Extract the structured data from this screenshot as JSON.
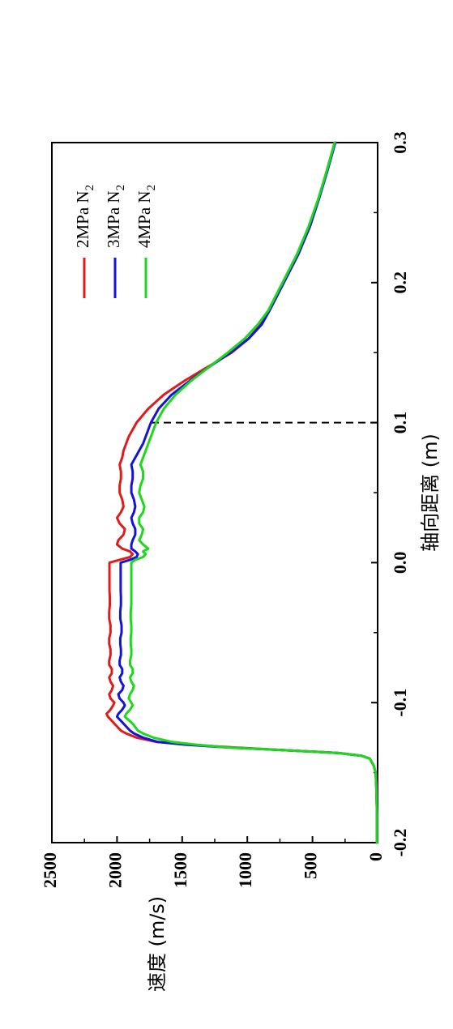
{
  "chart_data": {
    "type": "line",
    "rotation": "rotated 90° clockwise",
    "xlabel": "轴向距离 (m)",
    "ylabel": "速度 (m/s)",
    "xlim": [
      -0.2,
      0.3
    ],
    "ylim": [
      0,
      2500
    ],
    "x_ticks": [
      "-0.2",
      "-0.1",
      "0.0",
      "0.1",
      "0.2",
      "0.3"
    ],
    "y_ticks": [
      "0",
      "500",
      "1000",
      "1500",
      "2000",
      "2500"
    ],
    "legend": {
      "placement": "top-right",
      "entries": [
        "2MPa N2",
        "3MPa N2",
        "4MPa N2"
      ]
    },
    "reference_line": {
      "x": 0.1,
      "y_range": [
        0,
        1750
      ],
      "style": "dashed"
    },
    "series": [
      {
        "name": "2MPa N2",
        "color": "#e01b1b",
        "x": [
          -0.2,
          -0.18,
          -0.16,
          -0.15,
          -0.145,
          -0.14,
          -0.138,
          -0.136,
          -0.134,
          -0.132,
          -0.13,
          -0.128,
          -0.125,
          -0.122,
          -0.12,
          -0.115,
          -0.11,
          -0.108,
          -0.105,
          -0.102,
          -0.1,
          -0.097,
          -0.094,
          -0.091,
          -0.088,
          -0.085,
          -0.082,
          -0.079,
          -0.076,
          -0.073,
          -0.07,
          -0.066,
          -0.062,
          -0.058,
          -0.054,
          -0.05,
          -0.045,
          -0.04,
          -0.035,
          -0.03,
          -0.025,
          -0.02,
          -0.015,
          -0.01,
          -0.005,
          0.0,
          0.002,
          0.004,
          0.006,
          0.008,
          0.01,
          0.013,
          0.016,
          0.02,
          0.024,
          0.028,
          0.032,
          0.036,
          0.04,
          0.045,
          0.05,
          0.055,
          0.06,
          0.065,
          0.07,
          0.075,
          0.08,
          0.085,
          0.09,
          0.095,
          0.1,
          0.11,
          0.12,
          0.13,
          0.14,
          0.15,
          0.16,
          0.17,
          0.18,
          0.2,
          0.22,
          0.24,
          0.26,
          0.28,
          0.3
        ],
        "values": [
          5,
          5,
          10,
          15,
          30,
          60,
          120,
          300,
          700,
          1100,
          1450,
          1700,
          1850,
          1930,
          1970,
          2020,
          2070,
          2080,
          2050,
          2030,
          2020,
          2050,
          2060,
          2040,
          2030,
          2050,
          2060,
          2040,
          2040,
          2060,
          2060,
          2050,
          2050,
          2060,
          2060,
          2050,
          2050,
          2060,
          2060,
          2055,
          2055,
          2058,
          2058,
          2058,
          2058,
          2058,
          1980,
          1900,
          1880,
          1900,
          1960,
          2000,
          1990,
          1950,
          1940,
          1980,
          2000,
          1970,
          1950,
          1960,
          1980,
          1980,
          1970,
          1970,
          1980,
          1960,
          1950,
          1930,
          1910,
          1880,
          1850,
          1760,
          1640,
          1480,
          1300,
          1120,
          990,
          900,
          830,
          720,
          610,
          520,
          450,
          390,
          330
        ]
      },
      {
        "name": "3MPa N2",
        "color": "#1414d8",
        "x": [
          -0.2,
          -0.18,
          -0.16,
          -0.15,
          -0.145,
          -0.14,
          -0.138,
          -0.136,
          -0.134,
          -0.132,
          -0.13,
          -0.128,
          -0.125,
          -0.122,
          -0.12,
          -0.115,
          -0.11,
          -0.108,
          -0.105,
          -0.102,
          -0.1,
          -0.097,
          -0.094,
          -0.091,
          -0.088,
          -0.085,
          -0.082,
          -0.079,
          -0.076,
          -0.073,
          -0.07,
          -0.066,
          -0.062,
          -0.058,
          -0.054,
          -0.05,
          -0.045,
          -0.04,
          -0.035,
          -0.03,
          -0.025,
          -0.02,
          -0.015,
          -0.01,
          -0.005,
          0.0,
          0.002,
          0.004,
          0.006,
          0.008,
          0.01,
          0.013,
          0.016,
          0.02,
          0.024,
          0.028,
          0.032,
          0.036,
          0.04,
          0.045,
          0.05,
          0.055,
          0.06,
          0.065,
          0.07,
          0.075,
          0.08,
          0.085,
          0.09,
          0.095,
          0.1,
          0.11,
          0.12,
          0.13,
          0.14,
          0.15,
          0.16,
          0.17,
          0.18,
          0.2,
          0.22,
          0.24,
          0.26,
          0.28,
          0.3
        ],
        "values": [
          5,
          5,
          10,
          15,
          30,
          60,
          120,
          300,
          700,
          1150,
          1480,
          1690,
          1800,
          1870,
          1900,
          1950,
          2000,
          1990,
          1960,
          1940,
          1950,
          1980,
          1990,
          1960,
          1950,
          1970,
          1980,
          1960,
          1960,
          1980,
          1980,
          1970,
          1970,
          1975,
          1975,
          1965,
          1965,
          1975,
          1975,
          1970,
          1970,
          1972,
          1972,
          1972,
          1972,
          1972,
          1900,
          1850,
          1840,
          1860,
          1890,
          1890,
          1880,
          1860,
          1860,
          1880,
          1890,
          1870,
          1860,
          1870,
          1890,
          1890,
          1880,
          1880,
          1890,
          1860,
          1830,
          1800,
          1780,
          1760,
          1740,
          1680,
          1580,
          1440,
          1290,
          1130,
          990,
          890,
          830,
          720,
          610,
          520,
          450,
          385,
          325
        ]
      },
      {
        "name": "4MPa N2",
        "color": "#1ed81e",
        "x": [
          -0.2,
          -0.18,
          -0.16,
          -0.15,
          -0.145,
          -0.14,
          -0.138,
          -0.136,
          -0.134,
          -0.132,
          -0.13,
          -0.128,
          -0.125,
          -0.122,
          -0.12,
          -0.115,
          -0.11,
          -0.108,
          -0.105,
          -0.102,
          -0.1,
          -0.097,
          -0.094,
          -0.091,
          -0.088,
          -0.085,
          -0.082,
          -0.079,
          -0.076,
          -0.073,
          -0.07,
          -0.066,
          -0.062,
          -0.058,
          -0.054,
          -0.05,
          -0.045,
          -0.04,
          -0.035,
          -0.03,
          -0.025,
          -0.02,
          -0.015,
          -0.01,
          -0.005,
          0.0,
          0.002,
          0.004,
          0.006,
          0.008,
          0.01,
          0.013,
          0.016,
          0.02,
          0.024,
          0.028,
          0.032,
          0.036,
          0.04,
          0.045,
          0.05,
          0.055,
          0.06,
          0.065,
          0.07,
          0.075,
          0.08,
          0.085,
          0.09,
          0.095,
          0.1,
          0.11,
          0.12,
          0.13,
          0.14,
          0.15,
          0.16,
          0.17,
          0.18,
          0.2,
          0.22,
          0.24,
          0.26,
          0.28,
          0.3
        ],
        "values": [
          5,
          5,
          10,
          15,
          30,
          60,
          120,
          300,
          700,
          1150,
          1400,
          1580,
          1720,
          1800,
          1840,
          1880,
          1940,
          1930,
          1900,
          1880,
          1890,
          1910,
          1900,
          1880,
          1870,
          1890,
          1900,
          1880,
          1880,
          1900,
          1900,
          1890,
          1890,
          1895,
          1895,
          1890,
          1890,
          1895,
          1895,
          1890,
          1890,
          1890,
          1890,
          1890,
          1890,
          1890,
          1860,
          1800,
          1780,
          1800,
          1760,
          1800,
          1830,
          1810,
          1800,
          1830,
          1830,
          1800,
          1790,
          1810,
          1830,
          1820,
          1800,
          1800,
          1820,
          1800,
          1780,
          1760,
          1740,
          1720,
          1700,
          1640,
          1550,
          1430,
          1290,
          1150,
          1020,
          920,
          840,
          730,
          620,
          530,
          455,
          390,
          330
        ]
      }
    ]
  }
}
